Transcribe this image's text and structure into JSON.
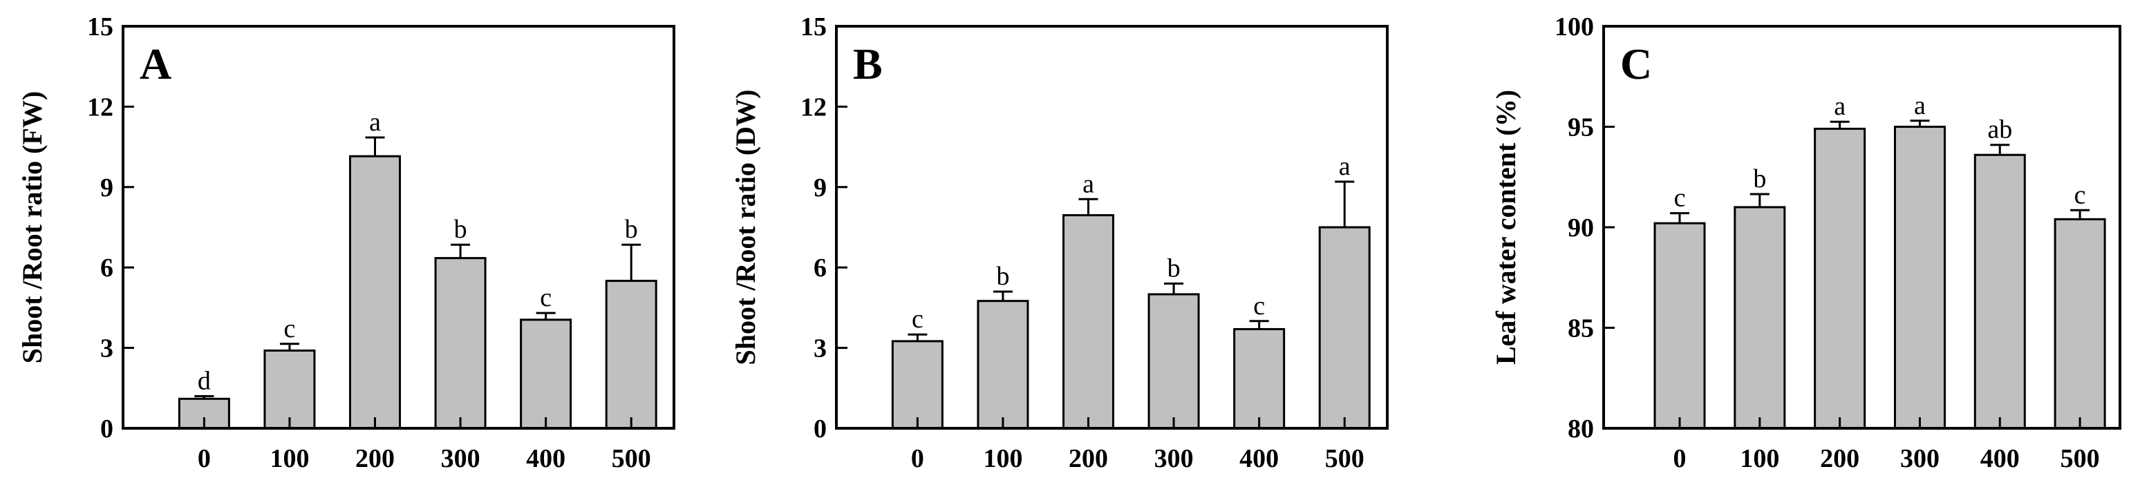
{
  "chart_data": [
    {
      "type": "bar",
      "panel": "A",
      "ylabel": "Shoot /Root ratio (FW)",
      "categories": [
        "0",
        "100",
        "200",
        "300",
        "400",
        "500"
      ],
      "values": [
        1.1,
        2.9,
        10.15,
        6.35,
        4.05,
        5.5
      ],
      "errors": [
        0.1,
        0.25,
        0.7,
        0.5,
        0.25,
        1.35
      ],
      "significance": [
        "d",
        "c",
        "a",
        "b",
        "c",
        "b"
      ],
      "ylim": [
        0,
        15
      ],
      "yticks": [
        "0",
        "3",
        "6",
        "9",
        "12",
        "15"
      ]
    },
    {
      "type": "bar",
      "panel": "B",
      "ylabel": "Shoot /Root ratio (DW)",
      "categories": [
        "0",
        "100",
        "200",
        "300",
        "400",
        "500"
      ],
      "values": [
        3.25,
        4.75,
        7.95,
        5.0,
        3.7,
        7.5
      ],
      "errors": [
        0.25,
        0.35,
        0.6,
        0.4,
        0.3,
        1.7
      ],
      "significance": [
        "c",
        "b",
        "a",
        "b",
        "c",
        "a"
      ],
      "ylim": [
        0,
        15
      ],
      "yticks": [
        "0",
        "3",
        "6",
        "9",
        "12",
        "15"
      ]
    },
    {
      "type": "bar",
      "panel": "C",
      "ylabel": "Leaf water content (%)",
      "categories": [
        "0",
        "100",
        "200",
        "300",
        "400",
        "500"
      ],
      "values": [
        90.2,
        91.0,
        94.9,
        95.0,
        93.6,
        90.4
      ],
      "errors": [
        0.5,
        0.65,
        0.35,
        0.3,
        0.5,
        0.45
      ],
      "significance": [
        "c",
        "b",
        "a",
        "a",
        "ab",
        "c"
      ],
      "ylim": [
        80,
        100
      ],
      "yticks": [
        "80",
        "85",
        "90",
        "95",
        "100"
      ]
    }
  ]
}
